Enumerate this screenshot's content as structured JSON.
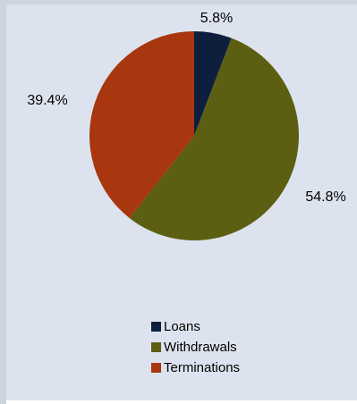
{
  "chart_data": {
    "type": "pie",
    "categories": [
      "Loans",
      "Withdrawals",
      "Terminations"
    ],
    "values": [
      5.8,
      54.8,
      39.4
    ],
    "labels": [
      "5.8%",
      "54.8%",
      "39.4%"
    ],
    "colors": [
      "#0d1f3c",
      "#5c5e12",
      "#a8360f"
    ],
    "start_angle_deg": 0,
    "direction": "clockwise",
    "legend": "bottom-center"
  }
}
